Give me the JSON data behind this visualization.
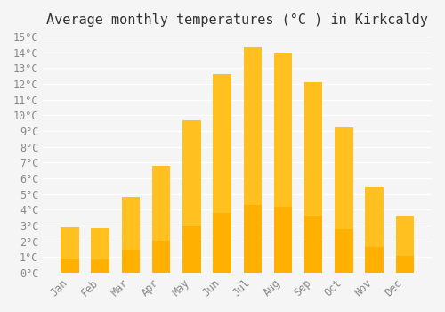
{
  "title": "Average monthly temperatures (°C ) in Kirkcaldy",
  "months": [
    "Jan",
    "Feb",
    "Mar",
    "Apr",
    "May",
    "Jun",
    "Jul",
    "Aug",
    "Sep",
    "Oct",
    "Nov",
    "Dec"
  ],
  "values": [
    2.9,
    2.8,
    4.8,
    6.8,
    9.7,
    12.6,
    14.3,
    13.9,
    12.1,
    9.2,
    5.4,
    3.6
  ],
  "bar_color_top": "#FFC020",
  "bar_color_bottom": "#FFB000",
  "ylim": [
    0,
    15
  ],
  "yticks": [
    0,
    1,
    2,
    3,
    4,
    5,
    6,
    7,
    8,
    9,
    10,
    11,
    12,
    13,
    14,
    15
  ],
  "background_color": "#F5F5F5",
  "grid_color": "#FFFFFF",
  "title_fontsize": 11,
  "tick_fontsize": 8.5,
  "font_family": "monospace"
}
